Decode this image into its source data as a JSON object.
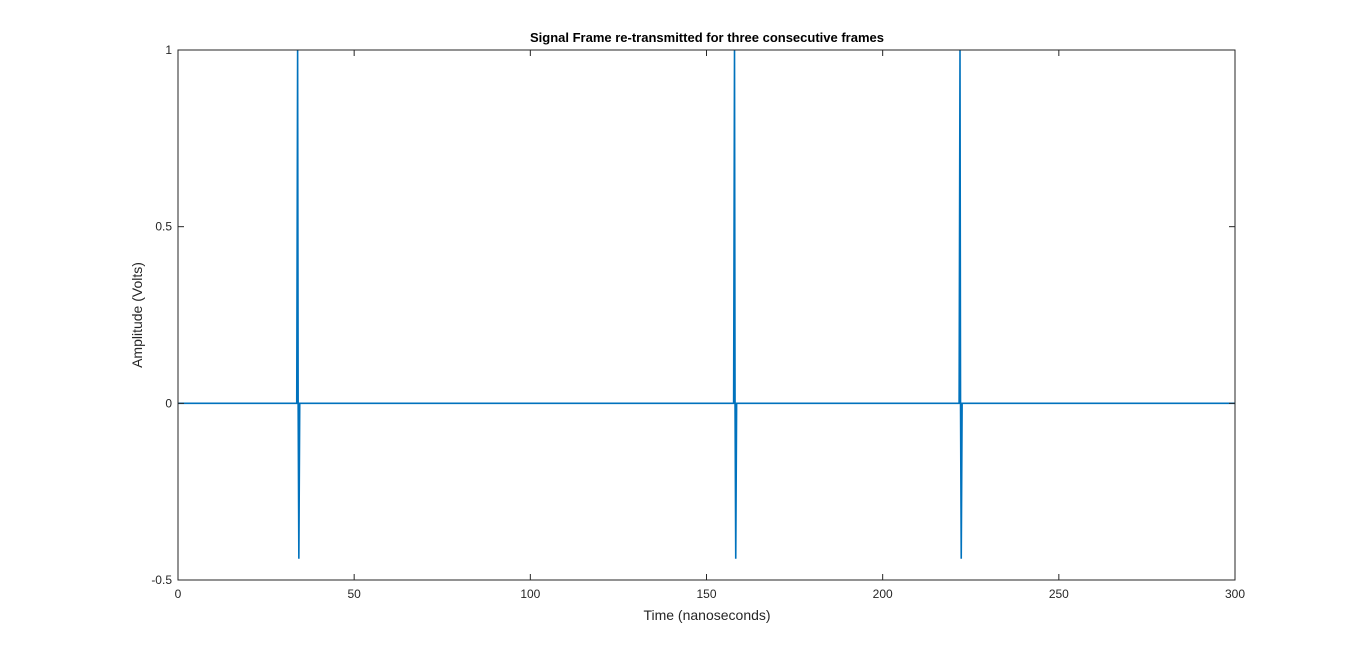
{
  "chart_data": {
    "type": "line",
    "title": "Signal Frame re-transmitted for three consecutive frames",
    "xlabel": "Time (nanoseconds)",
    "ylabel": "Amplitude (Volts)",
    "xlim": [
      0,
      300
    ],
    "ylim": [
      -0.5,
      1
    ],
    "xticks": [
      0,
      50,
      100,
      150,
      200,
      250,
      300
    ],
    "xtick_labels": [
      "0",
      "50",
      "100",
      "150",
      "200",
      "250",
      "300"
    ],
    "yticks": [
      -0.5,
      0,
      0.5,
      1
    ],
    "ytick_labels": [
      "-0.5",
      "0",
      "0.5",
      "1"
    ],
    "grid": false,
    "series": [
      {
        "color": "#0072BD",
        "x": [
          0,
          33.7,
          33.95,
          34.1,
          34.3,
          34.55,
          157.7,
          157.95,
          158.1,
          158.3,
          158.55,
          221.7,
          221.95,
          222.1,
          222.3,
          222.55,
          300
        ],
        "y": [
          0,
          0,
          1,
          0,
          -0.44,
          0,
          0,
          1,
          0,
          -0.44,
          0,
          0,
          1,
          0,
          -0.44,
          0,
          0
        ]
      }
    ]
  }
}
